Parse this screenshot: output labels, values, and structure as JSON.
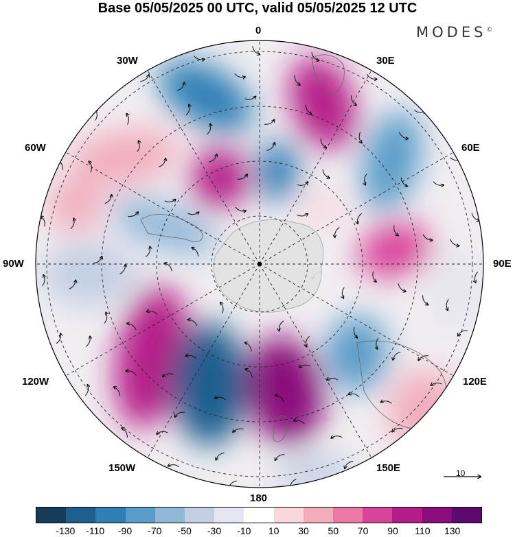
{
  "header": {
    "title": "Base 05/05/2025 00 UTC, valid 05/05/2025 12 UTC",
    "brand": "MODES",
    "brand_mark": "©"
  },
  "longitude_labels": {
    "lon_0": "0",
    "lon_30e": "30E",
    "lon_60e": "60E",
    "lon_90e": "90E",
    "lon_120e": "120E",
    "lon_150e": "150E",
    "lon_180": "180",
    "lon_150w": "150W",
    "lon_120w": "120W",
    "lon_90w": "90W",
    "lon_60w": "60W",
    "lon_30w": "30W"
  },
  "colorbar": {
    "colors": [
      "#173c59",
      "#1e5e8f",
      "#2f7fb5",
      "#5a9cc9",
      "#92b8d8",
      "#c2cfe3",
      "#e5e5ef",
      "#ffffff",
      "#f8d6dc",
      "#f2adbd",
      "#ea7aa5",
      "#d9439a",
      "#b51c88",
      "#8a0d7a",
      "#5c0a6e"
    ],
    "ticks": [
      "-130",
      "-110",
      "-90",
      "-70",
      "-50",
      "-30",
      "-10",
      "10",
      "30",
      "50",
      "70",
      "90",
      "110",
      "130"
    ]
  },
  "vector_reference": {
    "label": "10"
  }
}
